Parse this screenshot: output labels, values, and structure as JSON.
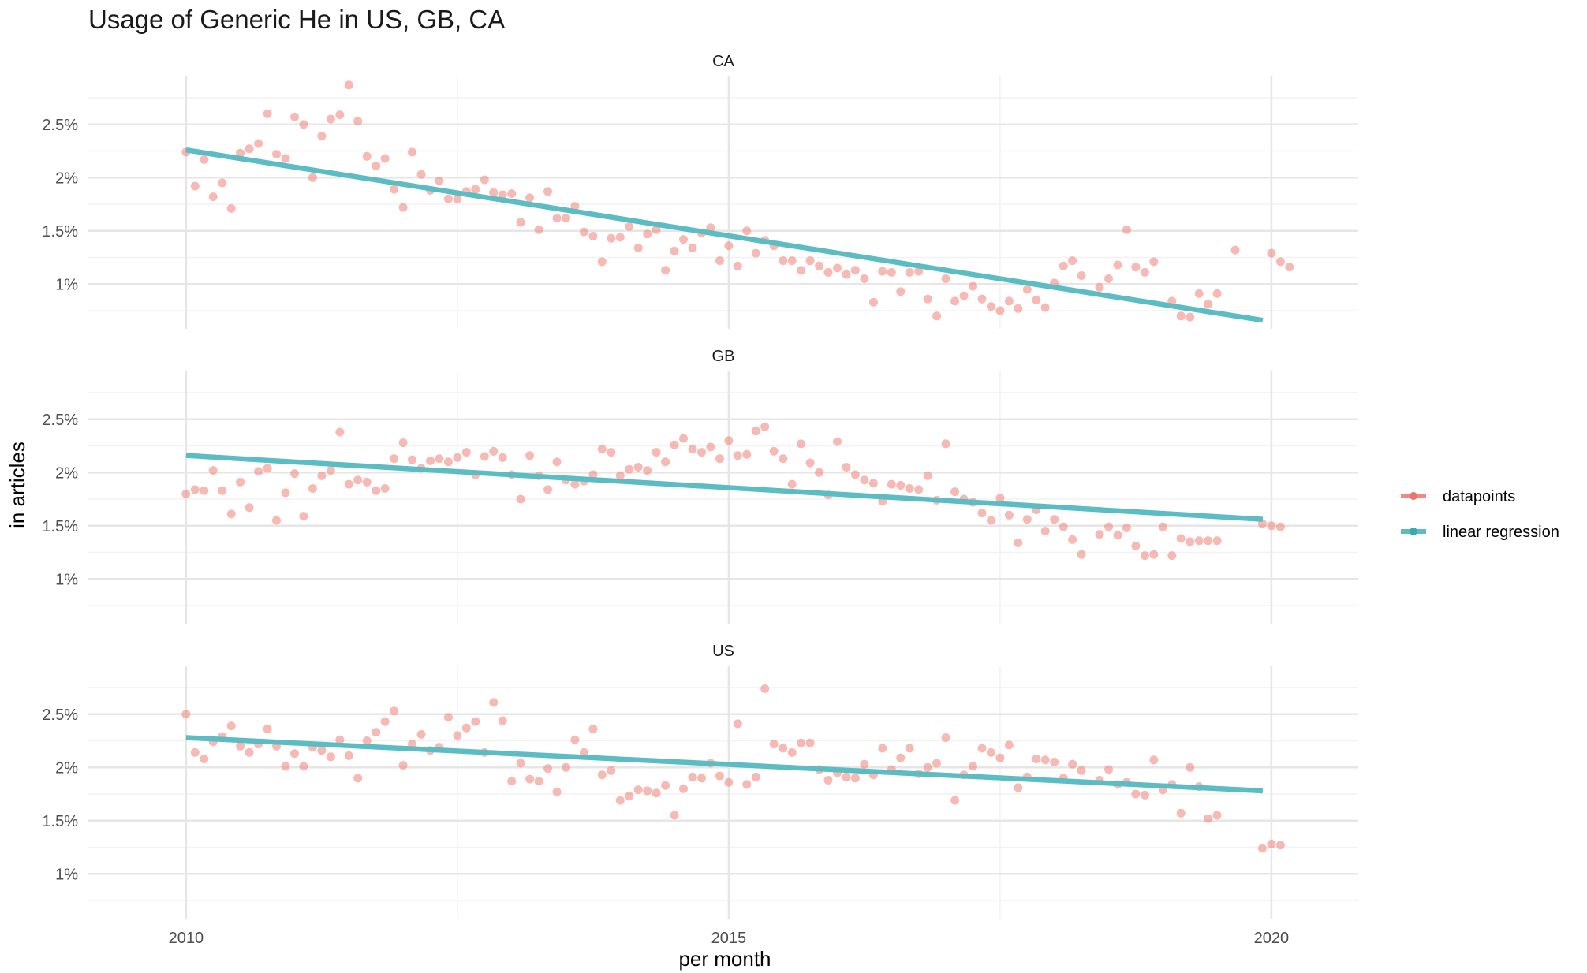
{
  "chart_data": {
    "type": "scatter",
    "title": "Usage of Generic He in US, GB, CA",
    "xlabel": "per month",
    "ylabel": "in articles",
    "x_ticks": [
      2010,
      2015,
      2020
    ],
    "x_tick_labels": [
      "2010",
      "2015",
      "2020"
    ],
    "xlim": [
      2009.1,
      2020.8
    ],
    "y_ticks": [
      1,
      1.5,
      2,
      2.5
    ],
    "y_tick_labels": [
      "1%",
      "1.5%",
      "2%",
      "2.5%"
    ],
    "ylim": [
      0.58,
      2.95
    ],
    "grid": true,
    "legend_position": "right",
    "legend": [
      {
        "label": "datapoints",
        "color": "#f08a80"
      },
      {
        "label": "linear regression",
        "color": "#5bbcc3"
      }
    ],
    "start_year": 2010,
    "facets": [
      {
        "label": "CA",
        "regression": {
          "x": [
            2010,
            2019.92
          ],
          "y": [
            2.26,
            0.66
          ]
        },
        "y": [
          2.24,
          1.92,
          2.17,
          1.82,
          1.95,
          1.71,
          2.23,
          2.27,
          2.32,
          2.6,
          2.22,
          2.18,
          2.57,
          2.5,
          2.0,
          2.39,
          2.55,
          2.59,
          2.87,
          2.53,
          2.2,
          2.11,
          2.18,
          1.89,
          1.72,
          2.24,
          2.03,
          1.88,
          1.97,
          1.8,
          1.8,
          1.87,
          1.89,
          1.98,
          1.86,
          1.84,
          1.85,
          1.58,
          1.81,
          1.51,
          1.87,
          1.62,
          1.62,
          1.73,
          1.49,
          1.45,
          1.21,
          1.43,
          1.44,
          1.54,
          1.34,
          1.47,
          1.51,
          1.13,
          1.31,
          1.42,
          1.34,
          1.48,
          1.53,
          1.22,
          1.36,
          1.17,
          1.5,
          1.29,
          1.41,
          1.36,
          1.22,
          1.22,
          1.13,
          1.22,
          1.17,
          1.11,
          1.15,
          1.09,
          1.13,
          1.05,
          0.83,
          1.12,
          1.11,
          0.93,
          1.11,
          1.12,
          0.86,
          0.7,
          1.05,
          0.84,
          0.89,
          0.98,
          0.86,
          0.79,
          0.75,
          0.84,
          0.77,
          0.95,
          0.85,
          0.78,
          1.01,
          1.17,
          1.22,
          1.08,
          null,
          0.97,
          1.05,
          1.18,
          1.51,
          1.16,
          1.11,
          1.21,
          null,
          0.84,
          0.7,
          0.69,
          0.91,
          0.81,
          0.91,
          null,
          1.32,
          null,
          null,
          null,
          1.29,
          1.21,
          1.16
        ]
      },
      {
        "label": "GB",
        "regression": {
          "x": [
            2010,
            2019.92
          ],
          "y": [
            2.16,
            1.56
          ]
        },
        "y": [
          1.8,
          1.84,
          1.83,
          2.02,
          1.83,
          1.61,
          1.91,
          1.67,
          2.01,
          2.04,
          1.55,
          1.81,
          1.99,
          1.59,
          1.85,
          1.97,
          2.02,
          2.38,
          1.89,
          1.93,
          1.91,
          1.83,
          1.85,
          2.13,
          2.28,
          2.12,
          2.04,
          2.11,
          2.13,
          2.1,
          2.14,
          2.19,
          1.98,
          2.15,
          2.2,
          2.14,
          1.98,
          1.75,
          2.16,
          1.97,
          1.84,
          2.1,
          1.93,
          1.89,
          1.92,
          1.98,
          2.22,
          2.19,
          1.97,
          2.03,
          2.05,
          2.02,
          2.19,
          2.1,
          2.26,
          2.32,
          2.22,
          2.19,
          2.24,
          2.13,
          2.3,
          2.16,
          2.17,
          2.39,
          2.43,
          2.2,
          2.13,
          1.89,
          2.27,
          2.09,
          2.0,
          1.79,
          2.29,
          2.05,
          1.98,
          1.93,
          1.9,
          1.73,
          1.89,
          1.88,
          1.85,
          1.84,
          1.97,
          1.74,
          2.27,
          1.82,
          1.75,
          1.72,
          1.62,
          1.55,
          1.76,
          1.6,
          1.34,
          1.56,
          1.65,
          1.45,
          1.56,
          1.49,
          1.37,
          1.23,
          null,
          1.42,
          1.49,
          1.41,
          1.48,
          1.31,
          1.22,
          1.23,
          1.49,
          1.22,
          1.38,
          1.35,
          1.36,
          1.36,
          1.36,
          null,
          null,
          null,
          null,
          1.52,
          1.5,
          1.49
        ]
      },
      {
        "label": "US",
        "regression": {
          "x": [
            2010,
            2019.92
          ],
          "y": [
            2.28,
            1.78
          ]
        },
        "y": [
          2.5,
          2.14,
          2.08,
          2.24,
          2.29,
          2.39,
          2.2,
          2.14,
          2.22,
          2.36,
          2.2,
          2.01,
          2.13,
          2.01,
          2.19,
          2.16,
          2.1,
          2.26,
          2.11,
          1.9,
          2.25,
          2.33,
          2.43,
          2.53,
          2.02,
          2.22,
          2.31,
          2.16,
          2.19,
          2.47,
          2.3,
          2.37,
          2.43,
          2.14,
          2.61,
          2.44,
          1.87,
          2.04,
          1.89,
          1.87,
          1.99,
          1.77,
          2.0,
          2.26,
          2.14,
          2.36,
          1.93,
          1.97,
          1.69,
          1.73,
          1.79,
          1.78,
          1.76,
          1.83,
          1.55,
          1.8,
          1.91,
          1.9,
          2.04,
          1.92,
          1.86,
          2.41,
          1.84,
          1.91,
          2.74,
          2.22,
          2.18,
          2.14,
          2.23,
          2.23,
          1.98,
          1.88,
          1.95,
          1.91,
          1.9,
          2.03,
          1.93,
          2.18,
          1.98,
          2.09,
          2.18,
          1.94,
          2.0,
          2.04,
          2.28,
          1.69,
          1.93,
          2.01,
          2.18,
          2.14,
          2.09,
          2.21,
          1.81,
          1.91,
          2.08,
          2.07,
          2.05,
          1.9,
          2.03,
          1.97,
          null,
          1.88,
          1.98,
          1.84,
          1.86,
          1.75,
          1.74,
          2.07,
          1.79,
          1.84,
          1.57,
          2.0,
          1.82,
          1.52,
          1.55,
          null,
          null,
          null,
          null,
          1.24,
          1.28,
          1.27
        ]
      }
    ]
  }
}
